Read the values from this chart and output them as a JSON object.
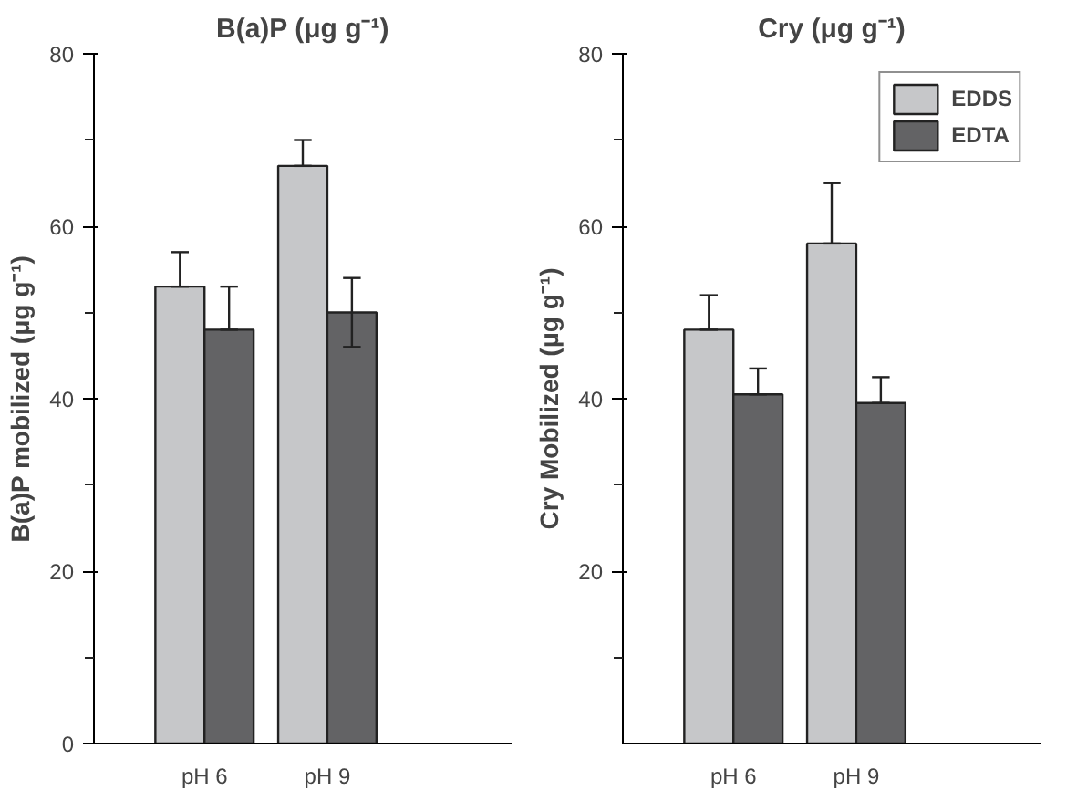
{
  "chart_data": [
    {
      "type": "bar",
      "title": "B(a)P (μg g⁻¹)",
      "ylabel": "B(a)P mobilized (μg g⁻¹)",
      "categories": [
        "pH 6",
        "pH 9"
      ],
      "ylim": [
        0,
        80
      ],
      "yticks": [
        0,
        20,
        40,
        60,
        80
      ],
      "series": [
        {
          "color": "#c6c7c9",
          "values": [
            53,
            67
          ],
          "errors": [
            [
              53,
              57
            ],
            [
              67,
              70
            ]
          ]
        },
        {
          "color": "#636365",
          "values": [
            48,
            50
          ],
          "errors": [
            [
              48,
              53
            ],
            4
          ]
        }
      ]
    },
    {
      "type": "bar",
      "title": "Cry (μg g⁻¹)",
      "ylabel": "Cry Mobilized (μg g⁻¹)",
      "categories": [
        "pH 6",
        "pH 9"
      ],
      "ylim": [
        0,
        80
      ],
      "yticks": [
        20,
        40,
        60,
        80
      ],
      "legend": "top right",
      "series": [
        {
          "name": "EDDS",
          "color": "#c6c7c9",
          "values": [
            48,
            58
          ],
          "errors": [
            [
              48,
              52
            ],
            [
              58,
              65
            ]
          ]
        },
        {
          "name": "EDTA",
          "color": "#636365",
          "values": [
            40.5,
            39.5
          ],
          "errors": [
            [
              40.5,
              43.5
            ],
            [
              39.5,
              42.5
            ]
          ]
        }
      ]
    }
  ]
}
